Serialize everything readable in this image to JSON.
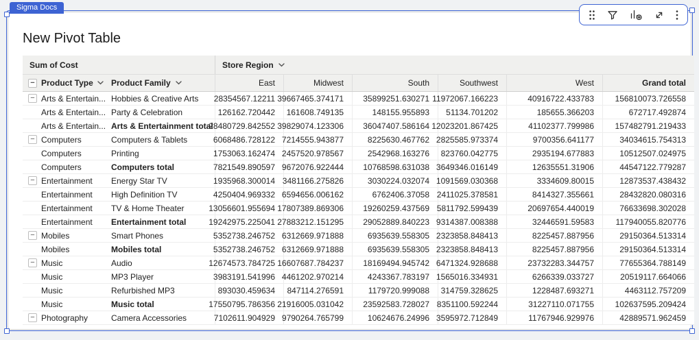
{
  "tab": {
    "label": "Sigma Docs"
  },
  "colors": {
    "accent_blue": "#3d63d3",
    "header_gray": "#f0f0ee",
    "tab_text": "#ffffff"
  },
  "toolbar": {
    "icons": [
      "drag-handle-icon",
      "filter-icon",
      "add-chart-icon",
      "expand-icon",
      "kebab-menu-icon"
    ]
  },
  "title": "New Pivot Table",
  "pivot": {
    "measure_label": "Sum of Cost",
    "column_dimension": "Store Region",
    "row_dimension_headers": {
      "type": "Product Type",
      "family": "Product Family"
    },
    "columns": [
      "East",
      "Midwest",
      "South",
      "Southwest",
      "West",
      "Grand total"
    ],
    "rows": [
      {
        "type": "Arts & Entertain...",
        "family": "Hobbies & Creative Arts",
        "start": true,
        "total": false,
        "values": [
          "28354567.12211",
          "39667465.374171",
          "35899251.630271",
          "11972067.166223",
          "40916722.433783",
          "156810073.726558"
        ]
      },
      {
        "type": "Arts & Entertain...",
        "family": "Party & Celebration",
        "start": false,
        "total": false,
        "values": [
          "126162.720442",
          "161608.749135",
          "148155.955893",
          "51134.701202",
          "185655.366203",
          "672717.492874"
        ]
      },
      {
        "type": "Arts & Entertain...",
        "family": "Arts & Entertainment total",
        "start": false,
        "total": true,
        "values": [
          "28480729.842552",
          "39829074.123306",
          "36047407.586164",
          "12023201.867425",
          "41102377.799986",
          "157482791.219433"
        ]
      },
      {
        "type": "Computers",
        "family": "Computers & Tablets",
        "start": true,
        "total": false,
        "values": [
          "6068486.728122",
          "7214555.943877",
          "8225630.467762",
          "2825585.973374",
          "9700356.641177",
          "34034615.754313"
        ]
      },
      {
        "type": "Computers",
        "family": "Printing",
        "start": false,
        "total": false,
        "values": [
          "1753063.162474",
          "2457520.978567",
          "2542968.163276",
          "823760.042775",
          "2935194.677883",
          "10512507.024975"
        ]
      },
      {
        "type": "Computers",
        "family": "Computers total",
        "start": false,
        "total": true,
        "values": [
          "7821549.890597",
          "9672076.922444",
          "10768598.631038",
          "3649346.016149",
          "12635551.31906",
          "44547122.779287"
        ]
      },
      {
        "type": "Entertainment",
        "family": "Energy Star TV",
        "start": true,
        "total": false,
        "values": [
          "1935968.300014",
          "3481166.275826",
          "3030224.032074",
          "1091569.030368",
          "3334609.80015",
          "12873537.438432"
        ]
      },
      {
        "type": "Entertainment",
        "family": "High Definition TV",
        "start": false,
        "total": false,
        "values": [
          "4250404.969332",
          "6594656.006162",
          "6762406.37058",
          "2411025.378581",
          "8414327.355661",
          "28432820.080316"
        ]
      },
      {
        "type": "Entertainment",
        "family": "TV & Home Theater",
        "start": false,
        "total": false,
        "values": [
          "13056601.955694",
          "17807389.869306",
          "19260259.437569",
          "5811792.599439",
          "20697654.440019",
          "76633698.302028"
        ]
      },
      {
        "type": "Entertainment",
        "family": "Entertainment total",
        "start": false,
        "total": true,
        "values": [
          "19242975.225041",
          "27883212.151295",
          "29052889.840223",
          "9314387.008388",
          "32446591.59583",
          "117940055.820776"
        ]
      },
      {
        "type": "Mobiles",
        "family": "Smart Phones",
        "start": true,
        "total": false,
        "values": [
          "5352738.246752",
          "6312669.971888",
          "6935639.558305",
          "2323858.848413",
          "8225457.887956",
          "29150364.513314"
        ]
      },
      {
        "type": "Mobiles",
        "family": "Mobiles total",
        "start": false,
        "total": true,
        "values": [
          "5352738.246752",
          "6312669.971888",
          "6935639.558305",
          "2323858.848413",
          "8225457.887956",
          "29150364.513314"
        ]
      },
      {
        "type": "Music",
        "family": "Audio",
        "start": true,
        "total": false,
        "values": [
          "12674573.784725",
          "16607687.784237",
          "18169494.945742",
          "6471324.928688",
          "23732283.344757",
          "77655364.788149"
        ]
      },
      {
        "type": "Music",
        "family": "MP3 Player",
        "start": false,
        "total": false,
        "values": [
          "3983191.541996",
          "4461202.970214",
          "4243367.783197",
          "1565016.334931",
          "6266339.033727",
          "20519117.664066"
        ]
      },
      {
        "type": "Music",
        "family": "Refurbished MP3",
        "start": false,
        "total": false,
        "values": [
          "893030.459634",
          "847114.276591",
          "1179720.999088",
          "314759.328625",
          "1228487.693271",
          "4463112.757209"
        ]
      },
      {
        "type": "Music",
        "family": "Music total",
        "start": false,
        "total": true,
        "values": [
          "17550795.786356",
          "21916005.031042",
          "23592583.728027",
          "8351100.592244",
          "31227110.071755",
          "102637595.209424"
        ]
      },
      {
        "type": "Photography",
        "family": "Camera Accessories",
        "start": true,
        "total": false,
        "values": [
          "7102611.904929",
          "9790264.765799",
          "10624676.24996",
          "3595972.712849",
          "11767946.929976",
          "42889571.962459"
        ]
      }
    ]
  }
}
